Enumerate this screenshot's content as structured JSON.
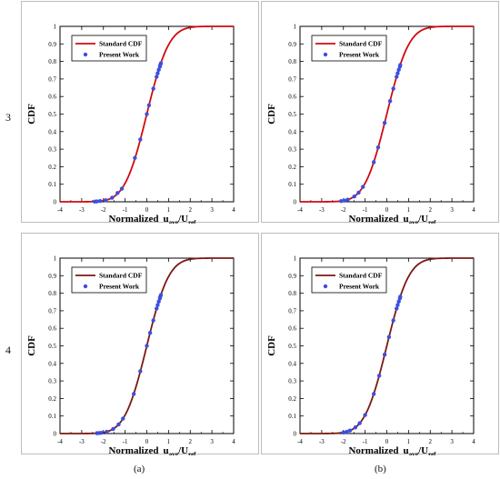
{
  "row_labels": [
    "3",
    "4"
  ],
  "col_labels": [
    "(a)",
    "(b)"
  ],
  "chart_data": [
    {
      "type": "line",
      "ylabel": "CDF",
      "xlabel": {
        "prefix": "Normalized",
        "u": "u",
        "u_sub": "avg",
        "sep": "/U",
        "ref_sub": "ref"
      },
      "xlim": [
        -4,
        4
      ],
      "ylim": [
        0,
        1
      ],
      "xticks": [
        -4,
        -3,
        -2,
        -1,
        0,
        1,
        2,
        3,
        4
      ],
      "yticks": [
        0,
        0.1,
        0.2,
        0.3,
        0.4,
        0.5,
        0.6,
        0.7,
        0.8,
        0.9,
        1
      ],
      "legend": "top-left",
      "series": [
        {
          "name": "Standard CDF",
          "kind": "line",
          "color": "#d10a10",
          "mean": 0,
          "std": 0.8
        },
        {
          "name": "Present Work",
          "kind": "scatter",
          "color": "#3b4fe0",
          "x": [
            -2.4,
            -2.3,
            -2.15,
            -1.9,
            -1.6,
            -1.35,
            -1.15,
            -0.55,
            -0.3,
            0.0,
            0.1,
            0.3,
            0.45,
            0.5,
            0.55,
            0.6,
            0.62,
            0.65
          ],
          "y": [
            0.001,
            0.002,
            0.004,
            0.009,
            0.023,
            0.05,
            0.075,
            0.25,
            0.355,
            0.5,
            0.55,
            0.645,
            0.713,
            0.733,
            0.752,
            0.77,
            0.78,
            0.79
          ]
        }
      ]
    },
    {
      "type": "line",
      "ylabel": "CDF",
      "xlabel": {
        "prefix": "Normalized",
        "u": "u",
        "u_sub": "avg",
        "sep": "/U",
        "ref_sub": "ref"
      },
      "xlim": [
        -4,
        4
      ],
      "ylim": [
        0,
        1
      ],
      "xticks": [
        -4,
        -3,
        -2,
        -1,
        0,
        1,
        2,
        3,
        4
      ],
      "yticks": [
        0,
        0.1,
        0.2,
        0.3,
        0.4,
        0.5,
        0.6,
        0.7,
        0.8,
        0.9,
        1
      ],
      "legend": "top-left",
      "series": [
        {
          "name": "Standard CDF",
          "kind": "line",
          "color": "#d10a10",
          "mean": 0,
          "std": 0.8
        },
        {
          "name": "Present Work",
          "kind": "scatter",
          "color": "#3b4fe0",
          "x": [
            -2.1,
            -1.95,
            -1.8,
            -1.5,
            -1.3,
            -1.1,
            -0.6,
            -0.4,
            -0.1,
            0.15,
            0.3,
            0.45,
            0.5,
            0.55,
            0.6,
            0.62
          ],
          "y": [
            0.004,
            0.007,
            0.012,
            0.03,
            0.052,
            0.085,
            0.226,
            0.31,
            0.45,
            0.574,
            0.645,
            0.713,
            0.733,
            0.752,
            0.77,
            0.78
          ]
        }
      ]
    },
    {
      "type": "line",
      "ylabel": "CDF",
      "xlabel": {
        "prefix": "Normalized",
        "u": "u",
        "u_sub": "avg",
        "sep": "/U",
        "ref_sub": "ref"
      },
      "xlim": [
        -4,
        4
      ],
      "ylim": [
        0,
        1
      ],
      "xticks": [
        -4,
        -3,
        -2,
        -1,
        0,
        1,
        2,
        3,
        4
      ],
      "yticks": [
        0,
        0.1,
        0.2,
        0.3,
        0.4,
        0.5,
        0.6,
        0.7,
        0.8,
        0.9,
        1
      ],
      "legend": "top-left",
      "series": [
        {
          "name": "Standard CDF",
          "kind": "line",
          "color": "#7a1a12",
          "mean": 0,
          "std": 0.8
        },
        {
          "name": "Present Work",
          "kind": "scatter",
          "color": "#3b4fe0",
          "x": [
            -2.3,
            -2.2,
            -2.1,
            -1.85,
            -1.55,
            -1.3,
            -1.1,
            -0.6,
            -0.3,
            0.0,
            0.15,
            0.3,
            0.45,
            0.5,
            0.55,
            0.6,
            0.62,
            0.65
          ],
          "y": [
            0.002,
            0.003,
            0.004,
            0.01,
            0.026,
            0.052,
            0.085,
            0.226,
            0.355,
            0.5,
            0.574,
            0.645,
            0.713,
            0.733,
            0.752,
            0.77,
            0.78,
            0.79
          ]
        }
      ]
    },
    {
      "type": "line",
      "ylabel": "CDF",
      "xlabel": {
        "prefix": "Normalized",
        "u": "u",
        "u_sub": "avg",
        "sep": "/U",
        "ref_sub": "ref"
      },
      "xlim": [
        -4,
        4
      ],
      "ylim": [
        0,
        1
      ],
      "xticks": [
        -4,
        -3,
        -2,
        -1,
        0,
        1,
        2,
        3,
        4
      ],
      "yticks": [
        0,
        0.1,
        0.2,
        0.3,
        0.4,
        0.5,
        0.6,
        0.7,
        0.8,
        0.9,
        1
      ],
      "legend": "top-left",
      "series": [
        {
          "name": "Standard CDF",
          "kind": "line",
          "color": "#7a1a12",
          "mean": 0,
          "std": 0.8
        },
        {
          "name": "Present Work",
          "kind": "scatter",
          "color": "#3b4fe0",
          "x": [
            -2.0,
            -1.85,
            -1.7,
            -1.45,
            -1.25,
            -1.0,
            -0.6,
            -0.35,
            -0.1,
            0.1,
            0.3,
            0.45,
            0.5,
            0.55,
            0.6,
            0.62
          ],
          "y": [
            0.006,
            0.01,
            0.017,
            0.035,
            0.059,
            0.106,
            0.226,
            0.33,
            0.45,
            0.55,
            0.645,
            0.713,
            0.733,
            0.752,
            0.77,
            0.78
          ]
        }
      ]
    }
  ]
}
